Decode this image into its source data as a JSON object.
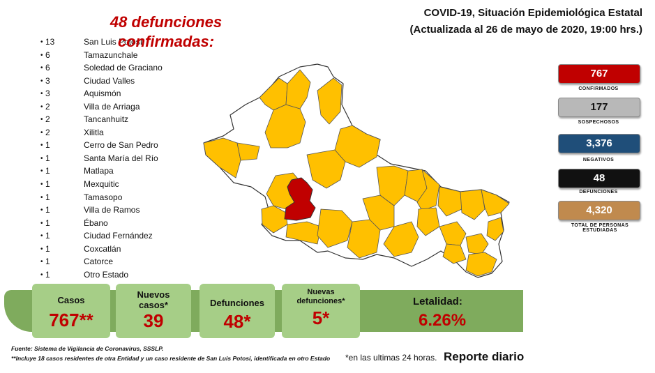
{
  "headline": "48 defunciones confirmadas:",
  "title": {
    "line1": "COVID-19, Situación Epidemiológica Estatal",
    "line2": "(Actualizada al 26 de mayo de 2020, 19:00 hrs.)"
  },
  "deaths_by_municipality": [
    {
      "count": "13",
      "name": "San Luis Potosí"
    },
    {
      "count": "6",
      "name": "Tamazunchale"
    },
    {
      "count": "6",
      "name": "Soledad de Graciano"
    },
    {
      "count": "3",
      "name": "Ciudad Valles"
    },
    {
      "count": "3",
      "name": "Aquismón"
    },
    {
      "count": "2",
      "name": "Villa de Arriaga"
    },
    {
      "count": "2",
      "name": "Tancanhuitz"
    },
    {
      "count": "2",
      "name": "Xilitla"
    },
    {
      "count": "1",
      "name": "Cerro de San Pedro"
    },
    {
      "count": "1",
      "name": "Santa María del Río"
    },
    {
      "count": "1",
      "name": "Matlapa"
    },
    {
      "count": "1",
      "name": "Mexquitic"
    },
    {
      "count": "1",
      "name": "Tamasopo"
    },
    {
      "count": "1",
      "name": "Villa de Ramos"
    },
    {
      "count": "1",
      "name": "Ébano"
    },
    {
      "count": "1",
      "name": "Ciudad Fernández"
    },
    {
      "count": "1",
      "name": "Coxcatlán"
    },
    {
      "count": "1",
      "name": "Catorce"
    },
    {
      "count": "1",
      "name": "Otro Estado"
    }
  ],
  "stats": [
    {
      "value": "767",
      "label": "CONFIRMADOS",
      "color": "#c00000"
    },
    {
      "value": "177",
      "label": "SOSPECHOSOS",
      "color": "#b8b8b8"
    },
    {
      "value": "3,376",
      "label": "NEGATIVOS",
      "color": "#1f4e79"
    },
    {
      "value": "48",
      "label": "DEFUNCIONES",
      "color": "#111111"
    },
    {
      "value": "4,320",
      "label": "TOTAL DE PERSONAS ESTUDIADAS",
      "color": "#c08a4e"
    }
  ],
  "summary": {
    "casos": {
      "label": "Casos",
      "value": "767**"
    },
    "nuevos_casos": {
      "label": "Nuevos casos*",
      "value": "39"
    },
    "defunciones": {
      "label": "Defunciones",
      "value": "48*"
    },
    "nuevas_defunciones": {
      "label": "Nuevas defunciones*",
      "value": "5*"
    },
    "letalidad": {
      "label": "Letalidad:",
      "value": "6.26%"
    }
  },
  "footer": {
    "fuente": "Fuente:  Sistema de Vigilancia de Coronavirus, SSSLP.",
    "note": "**Incluye 18 casos residentes de otra Entidad y un caso residente de San Luis Potosí, identificada en otro Estado",
    "note2": "*en las ultimas 24 horas.",
    "reporte": "Reporte diario"
  },
  "colors": {
    "map_affected": "#ffc000",
    "map_capital": "#c00000",
    "map_unaffected": "#ffffff",
    "card_green": "#a6ce87",
    "banner_green": "#7fab5d",
    "accent_red": "#c00000"
  }
}
